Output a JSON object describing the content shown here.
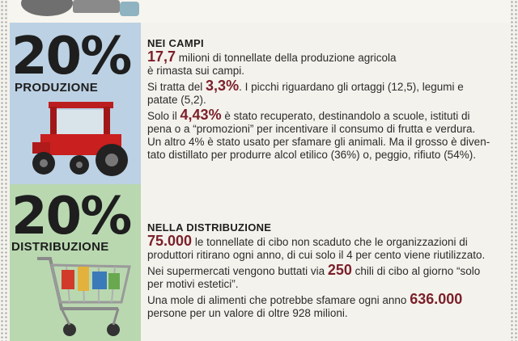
{
  "sections": [
    {
      "percent": "20%",
      "category": "PRODUZIONE",
      "title": "NEI CAMPI",
      "p1_value": "17,7",
      "p1_text_a": " milioni di tonnellate della produzione agricola",
      "p1_text_b": "è rimasta sui campi.",
      "p2_text_a": "Si tratta del ",
      "p2_value": "3,3%",
      "p2_text_b": ". I picchi riguardano gli ortaggi (12,5), legumi e",
      "p2_text_c": "patate (5,2).",
      "p3_text_a": "Solo il ",
      "p3_value": "4,43%",
      "p3_text_b": " è stato recuperato, destinandolo a scuole, istituti di",
      "p3_line2": "pena o a “promozioni” per incentivare il consumo di frutta e verdura.",
      "p3_line3": "Un altro 4% è stato usato per sfamare gli animali. Ma il grosso è diven-",
      "p3_line4": "tato distillato per produrre alcol etilico (36%) o, peggio, rifiuto (54%)."
    },
    {
      "percent": "20%",
      "category": "DISTRIBUZIONE",
      "title": "NELLA DISTRIBUZIONE",
      "p1_value": "75.000",
      "p1_text_a": " le tonnellate di cibo non scaduto che le organizzazioni di",
      "p1_text_b": "produttori ritirano ogni anno, di cui solo il 4 per cento viene riutilizzato.",
      "p2_text_a": "Nei supermercati vengono buttati via ",
      "p2_value": "250",
      "p2_text_b": " chili di cibo al giorno “solo",
      "p2_text_c": "per motivi estetici”.",
      "p3_text_a": "Una mole di alimenti che potrebbe sfamare ogni anno ",
      "p3_value": "636.000",
      "p3_line2": "persone per un valore di oltre 928 milioni."
    }
  ],
  "colors": {
    "accent": "#7b1f2a",
    "band_blue": "#bcd1e3",
    "band_green": "#b9d8b0"
  }
}
